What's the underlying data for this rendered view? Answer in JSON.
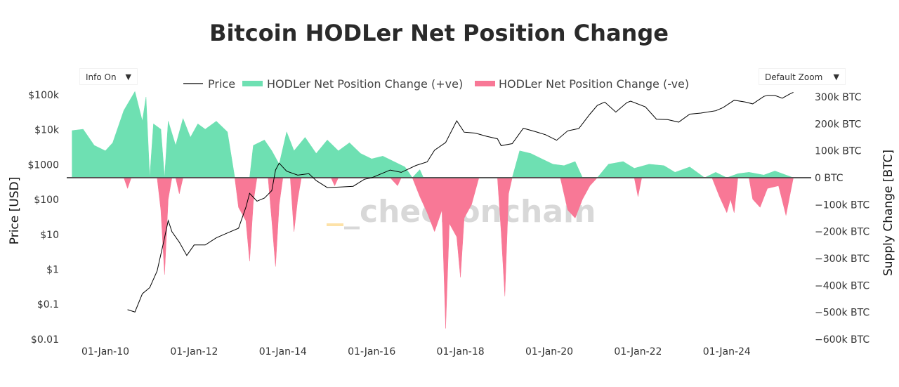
{
  "title": "Bitcoin HODLer Net Position Change",
  "controls": {
    "info": "Info On",
    "zoom": "Default Zoom",
    "arrow": "▼"
  },
  "watermark": "_checkonchain",
  "chart_data": {
    "type": "line+area",
    "title": "Bitcoin HODLer Net Position Change",
    "legend_placement": "top",
    "x_ticks": [
      "01-Jan-10",
      "01-Jan-12",
      "01-Jan-14",
      "01-Jan-16",
      "01-Jan-18",
      "01-Jan-20",
      "01-Jan-22",
      "01-Jan-24"
    ],
    "y_left": {
      "label": "Price [USD]",
      "scale": "log",
      "range": [
        0.01,
        100000
      ],
      "ticks": [
        "$100k",
        "$10k",
        "$1000",
        "$100",
        "$10",
        "$1",
        "$0.1",
        "$0.01"
      ]
    },
    "y_right": {
      "label": "Supply Change [BTC]",
      "scale": "linear",
      "range": [
        -600000,
        300000
      ],
      "ticks": [
        "300k BTC",
        "200k BTC",
        "100k BTC",
        "0 BTC",
        "−100k BTC",
        "−200k BTC",
        "−300k BTC",
        "−400k BTC",
        "−500k BTC",
        "−600k BTC"
      ]
    },
    "colors": {
      "price": "#000000",
      "positive": "#6ee0b2",
      "negative": "#f87896",
      "zero_line": "#555555"
    },
    "series": [
      {
        "name": "Price",
        "axis": "left",
        "type": "line",
        "points": [
          [
            "2010-07",
            0.07
          ],
          [
            "2010-09",
            0.06
          ],
          [
            "2010-11",
            0.2
          ],
          [
            "2011-01",
            0.3
          ],
          [
            "2011-03",
            0.9
          ],
          [
            "2011-05",
            8
          ],
          [
            "2011-06",
            25
          ],
          [
            "2011-07",
            12
          ],
          [
            "2011-09",
            6
          ],
          [
            "2011-11",
            2.5
          ],
          [
            "2012-01",
            5
          ],
          [
            "2012-04",
            5
          ],
          [
            "2012-07",
            8
          ],
          [
            "2012-10",
            11
          ],
          [
            "2013-01",
            15
          ],
          [
            "2013-03",
            60
          ],
          [
            "2013-04",
            150
          ],
          [
            "2013-06",
            90
          ],
          [
            "2013-08",
            110
          ],
          [
            "2013-10",
            180
          ],
          [
            "2013-11",
            700
          ],
          [
            "2013-12",
            1100
          ],
          [
            "2014-02",
            650
          ],
          [
            "2014-05",
            500
          ],
          [
            "2014-08",
            550
          ],
          [
            "2014-10",
            350
          ],
          [
            "2015-01",
            220
          ],
          [
            "2015-05",
            230
          ],
          [
            "2015-08",
            240
          ],
          [
            "2015-11",
            380
          ],
          [
            "2016-01",
            420
          ],
          [
            "2016-06",
            700
          ],
          [
            "2016-09",
            600
          ],
          [
            "2017-01",
            950
          ],
          [
            "2017-04",
            1200
          ],
          [
            "2017-06",
            2600
          ],
          [
            "2017-09",
            4300
          ],
          [
            "2017-12",
            18000
          ],
          [
            "2018-02",
            8500
          ],
          [
            "2018-05",
            8000
          ],
          [
            "2018-08",
            6500
          ],
          [
            "2018-11",
            5500
          ],
          [
            "2018-12",
            3500
          ],
          [
            "2019-03",
            4000
          ],
          [
            "2019-06",
            11000
          ],
          [
            "2019-09",
            9000
          ],
          [
            "2019-12",
            7200
          ],
          [
            "2020-03",
            5000
          ],
          [
            "2020-06",
            9300
          ],
          [
            "2020-09",
            10800
          ],
          [
            "2020-12",
            28000
          ],
          [
            "2021-02",
            50000
          ],
          [
            "2021-04",
            62000
          ],
          [
            "2021-07",
            32000
          ],
          [
            "2021-10",
            60000
          ],
          [
            "2021-11",
            66000
          ],
          [
            "2022-03",
            45000
          ],
          [
            "2022-06",
            20000
          ],
          [
            "2022-09",
            19500
          ],
          [
            "2022-12",
            16500
          ],
          [
            "2023-03",
            28000
          ],
          [
            "2023-06",
            30000
          ],
          [
            "2023-10",
            35000
          ],
          [
            "2023-12",
            43000
          ],
          [
            "2024-03",
            70000
          ],
          [
            "2024-06",
            62000
          ],
          [
            "2024-08",
            55000
          ],
          [
            "2024-11",
            90000
          ],
          [
            "2024-12",
            97000
          ],
          [
            "2025-02",
            96000
          ],
          [
            "2025-04",
            80000
          ],
          [
            "2025-06",
            105000
          ],
          [
            "2025-07",
            118000
          ]
        ]
      },
      {
        "name": "HODLer Net Position Change (+ve)",
        "axis": "right",
        "type": "area",
        "points": [
          [
            "2009-04",
            0
          ],
          [
            "2009-04",
            175000
          ],
          [
            "2009-07",
            180000
          ],
          [
            "2009-10",
            120000
          ],
          [
            "2010-01",
            100000
          ],
          [
            "2010-03",
            130000
          ],
          [
            "2010-06",
            250000
          ],
          [
            "2010-09",
            320000
          ],
          [
            "2010-11",
            210000
          ],
          [
            "2010-12",
            300000
          ],
          [
            "2011-01",
            0
          ],
          [
            "2011-02",
            200000
          ],
          [
            "2011-04",
            180000
          ],
          [
            "2011-05",
            0
          ],
          [
            "2011-06",
            210000
          ],
          [
            "2011-08",
            120000
          ],
          [
            "2011-10",
            220000
          ],
          [
            "2011-12",
            150000
          ],
          [
            "2012-02",
            200000
          ],
          [
            "2012-04",
            180000
          ],
          [
            "2012-07",
            210000
          ],
          [
            "2012-10",
            170000
          ],
          [
            "2012-12",
            0
          ],
          [
            "2013-04",
            0
          ],
          [
            "2013-05",
            120000
          ],
          [
            "2013-08",
            140000
          ],
          [
            "2013-10",
            100000
          ],
          [
            "2013-12",
            50000
          ],
          [
            "2014-02",
            170000
          ],
          [
            "2014-04",
            100000
          ],
          [
            "2014-07",
            150000
          ],
          [
            "2014-10",
            90000
          ],
          [
            "2015-01",
            140000
          ],
          [
            "2015-04",
            100000
          ],
          [
            "2015-07",
            130000
          ],
          [
            "2015-10",
            90000
          ],
          [
            "2016-01",
            70000
          ],
          [
            "2016-04",
            80000
          ],
          [
            "2016-07",
            60000
          ],
          [
            "2016-10",
            40000
          ],
          [
            "2016-12",
            0
          ],
          [
            "2017-02",
            30000
          ],
          [
            "2017-03",
            0
          ],
          [
            "2019-03",
            0
          ],
          [
            "2019-05",
            100000
          ],
          [
            "2019-08",
            90000
          ],
          [
            "2019-11",
            70000
          ],
          [
            "2020-02",
            50000
          ],
          [
            "2020-05",
            45000
          ],
          [
            "2020-08",
            60000
          ],
          [
            "2020-10",
            0
          ],
          [
            "2021-02",
            0
          ],
          [
            "2021-05",
            50000
          ],
          [
            "2021-09",
            60000
          ],
          [
            "2021-12",
            35000
          ],
          [
            "2022-04",
            50000
          ],
          [
            "2022-08",
            45000
          ],
          [
            "2022-11",
            20000
          ],
          [
            "2023-03",
            40000
          ],
          [
            "2023-07",
            0
          ],
          [
            "2023-10",
            20000
          ],
          [
            "2024-01",
            0
          ],
          [
            "2024-04",
            15000
          ],
          [
            "2024-07",
            20000
          ],
          [
            "2024-11",
            10000
          ],
          [
            "2025-02",
            25000
          ],
          [
            "2025-05",
            10000
          ],
          [
            "2025-07",
            0
          ]
        ]
      },
      {
        "name": "HODLer Net Position Change (-ve)",
        "axis": "right",
        "type": "area",
        "points": [
          [
            "2010-06",
            0
          ],
          [
            "2010-07",
            -40000
          ],
          [
            "2010-08",
            0
          ],
          [
            "2011-03",
            0
          ],
          [
            "2011-04",
            -120000
          ],
          [
            "2011-05",
            -360000
          ],
          [
            "2011-06",
            -80000
          ],
          [
            "2011-07",
            0
          ],
          [
            "2011-08",
            0
          ],
          [
            "2011-09",
            -60000
          ],
          [
            "2011-10",
            0
          ],
          [
            "2012-12",
            0
          ],
          [
            "2013-01",
            -110000
          ],
          [
            "2013-03",
            -160000
          ],
          [
            "2013-04",
            -310000
          ],
          [
            "2013-05",
            -90000
          ],
          [
            "2013-06",
            0
          ],
          [
            "2013-09",
            0
          ],
          [
            "2013-10",
            -160000
          ],
          [
            "2013-11",
            -330000
          ],
          [
            "2013-12",
            -100000
          ],
          [
            "2014-01",
            0
          ],
          [
            "2014-03",
            0
          ],
          [
            "2014-04",
            -200000
          ],
          [
            "2014-05",
            -80000
          ],
          [
            "2014-06",
            0
          ],
          [
            "2015-02",
            0
          ],
          [
            "2015-03",
            -30000
          ],
          [
            "2015-04",
            0
          ],
          [
            "2016-06",
            0
          ],
          [
            "2016-08",
            -30000
          ],
          [
            "2016-09",
            0
          ],
          [
            "2016-12",
            0
          ],
          [
            "2017-02",
            -70000
          ],
          [
            "2017-04",
            -130000
          ],
          [
            "2017-06",
            -200000
          ],
          [
            "2017-08",
            -120000
          ],
          [
            "2017-09",
            -560000
          ],
          [
            "2017-10",
            -170000
          ],
          [
            "2017-12",
            -220000
          ],
          [
            "2018-01",
            -370000
          ],
          [
            "2018-02",
            -150000
          ],
          [
            "2018-04",
            -100000
          ],
          [
            "2018-06",
            0
          ],
          [
            "2018-11",
            0
          ],
          [
            "2018-12",
            -200000
          ],
          [
            "2019-01",
            -440000
          ],
          [
            "2019-02",
            -60000
          ],
          [
            "2019-03",
            0
          ],
          [
            "2020-04",
            0
          ],
          [
            "2020-06",
            -120000
          ],
          [
            "2020-08",
            -150000
          ],
          [
            "2020-10",
            -80000
          ],
          [
            "2020-12",
            -30000
          ],
          [
            "2021-02",
            0
          ],
          [
            "2021-12",
            0
          ],
          [
            "2022-01",
            -70000
          ],
          [
            "2022-02",
            0
          ],
          [
            "2023-09",
            0
          ],
          [
            "2023-11",
            -70000
          ],
          [
            "2024-01",
            -130000
          ],
          [
            "2024-02",
            -80000
          ],
          [
            "2024-03",
            -130000
          ],
          [
            "2024-04",
            0
          ],
          [
            "2024-07",
            0
          ],
          [
            "2024-08",
            -80000
          ],
          [
            "2024-10",
            -110000
          ],
          [
            "2024-12",
            -40000
          ],
          [
            "2025-03",
            -30000
          ],
          [
            "2025-05",
            -140000
          ],
          [
            "2025-06",
            -70000
          ],
          [
            "2025-07",
            0
          ]
        ]
      }
    ]
  }
}
